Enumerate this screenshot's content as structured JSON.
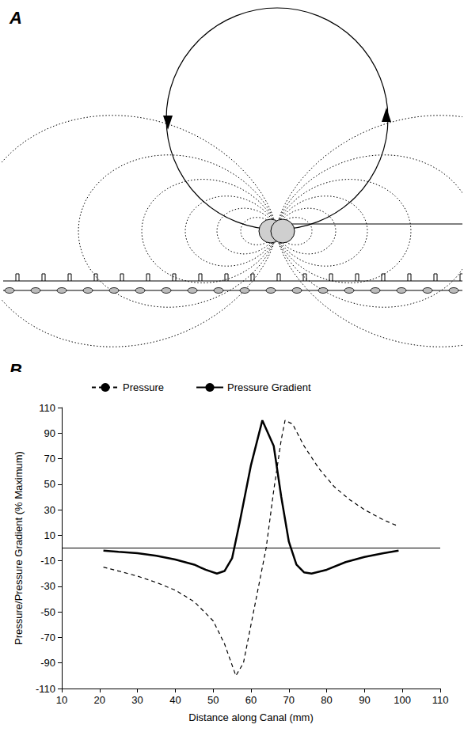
{
  "panel_labels": [
    "A",
    "B"
  ],
  "chart_data": {
    "type": "line",
    "x_label": "Distance along Canal (mm)",
    "y_label": "Pressure/Pressure Gradient (% Maximum)",
    "xlim": [
      10,
      110
    ],
    "xticks": [
      10,
      20,
      30,
      40,
      50,
      60,
      70,
      80,
      90,
      100,
      110
    ],
    "ylim": [
      -110,
      110
    ],
    "yticks": [
      -110,
      -90,
      -70,
      -50,
      -30,
      -10,
      10,
      30,
      50,
      70,
      90,
      110
    ],
    "baseline": 0,
    "grid": false,
    "legend": "top",
    "marker": "none",
    "series": [
      {
        "name": "Pressure",
        "color": "#000000",
        "line_style": "dashed",
        "x": [
          21,
          25,
          30,
          35,
          40,
          45,
          50,
          53,
          56,
          58,
          60,
          62,
          64,
          66,
          68,
          69,
          71,
          74,
          78,
          82,
          86,
          90,
          95,
          99
        ],
        "values": [
          -15,
          -18,
          -22,
          -27,
          -33,
          -42,
          -57,
          -75,
          -100,
          -90,
          -60,
          -30,
          0,
          45,
          85,
          100,
          97,
          80,
          62,
          48,
          38,
          30,
          22,
          17
        ]
      },
      {
        "name": "Pressure Gradient",
        "color": "#000000",
        "line_style": "solid",
        "x": [
          21,
          25,
          30,
          35,
          40,
          45,
          48,
          51,
          53,
          55,
          57,
          60,
          63,
          66,
          68,
          70,
          72,
          74,
          76,
          80,
          85,
          90,
          95,
          99
        ],
        "values": [
          -2,
          -3,
          -4,
          -6,
          -9,
          -13,
          -17,
          -20,
          -18,
          -8,
          20,
          65,
          100,
          80,
          40,
          5,
          -13,
          -19,
          -20,
          -17,
          -11,
          -7,
          -4,
          -2
        ]
      }
    ]
  }
}
